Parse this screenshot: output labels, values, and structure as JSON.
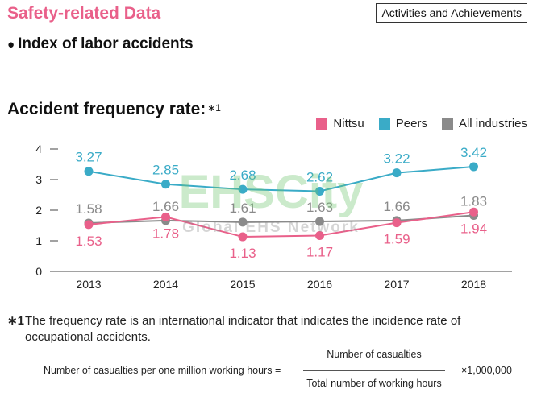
{
  "header": {
    "title": "Safety-related Data",
    "tag": "Activities and Achievements"
  },
  "section": {
    "bullet": "●",
    "title": "Index of labor accidents"
  },
  "chart_heading": {
    "title": "Accident frequency rate:",
    "note_mark": "∗1"
  },
  "watermark": {
    "line1": "EHSCity",
    "line2": "Global EHS Network"
  },
  "chart_data": {
    "type": "line",
    "categories": [
      "2013",
      "2014",
      "2015",
      "2016",
      "2017",
      "2018"
    ],
    "ylim": [
      0,
      4
    ],
    "yticks": [
      "0",
      "1",
      "2",
      "3",
      "4"
    ],
    "xlabel": "",
    "ylabel": "",
    "grid": false,
    "legend_position": "top-right",
    "series": [
      {
        "name": "Nittsu",
        "color": "#e9608a",
        "values": [
          1.53,
          1.78,
          1.13,
          1.17,
          1.59,
          1.94
        ],
        "label_position": "below"
      },
      {
        "name": "Peers",
        "color": "#3aabc7",
        "values": [
          3.27,
          2.85,
          2.68,
          2.62,
          3.22,
          3.42
        ],
        "label_position": "above"
      },
      {
        "name": "All industries",
        "color": "#8a8a8a",
        "values": [
          1.58,
          1.66,
          1.61,
          1.63,
          1.66,
          1.83
        ],
        "label_position": "above"
      }
    ],
    "value_labels": {
      "Nittsu": [
        "1.53",
        "1.78",
        "1.13",
        "1.17",
        "1.59",
        "1.94"
      ],
      "Peers": [
        "3.27",
        "2.85",
        "2.68",
        "2.62",
        "3.22",
        "3.42"
      ],
      "All industries": [
        "1.58",
        "1.66",
        "1.61",
        "1.63",
        "1.66",
        "1.83"
      ]
    }
  },
  "footnote": {
    "mark": "∗1",
    "text": "The frequency rate is an international indicator that indicates the incidence rate of occupational accidents."
  },
  "formula": {
    "left": "Number of casualties per one million working hours =",
    "numerator": "Number of casualties",
    "denominator": "Total number of working hours",
    "multiplier": "×1,000,000"
  }
}
